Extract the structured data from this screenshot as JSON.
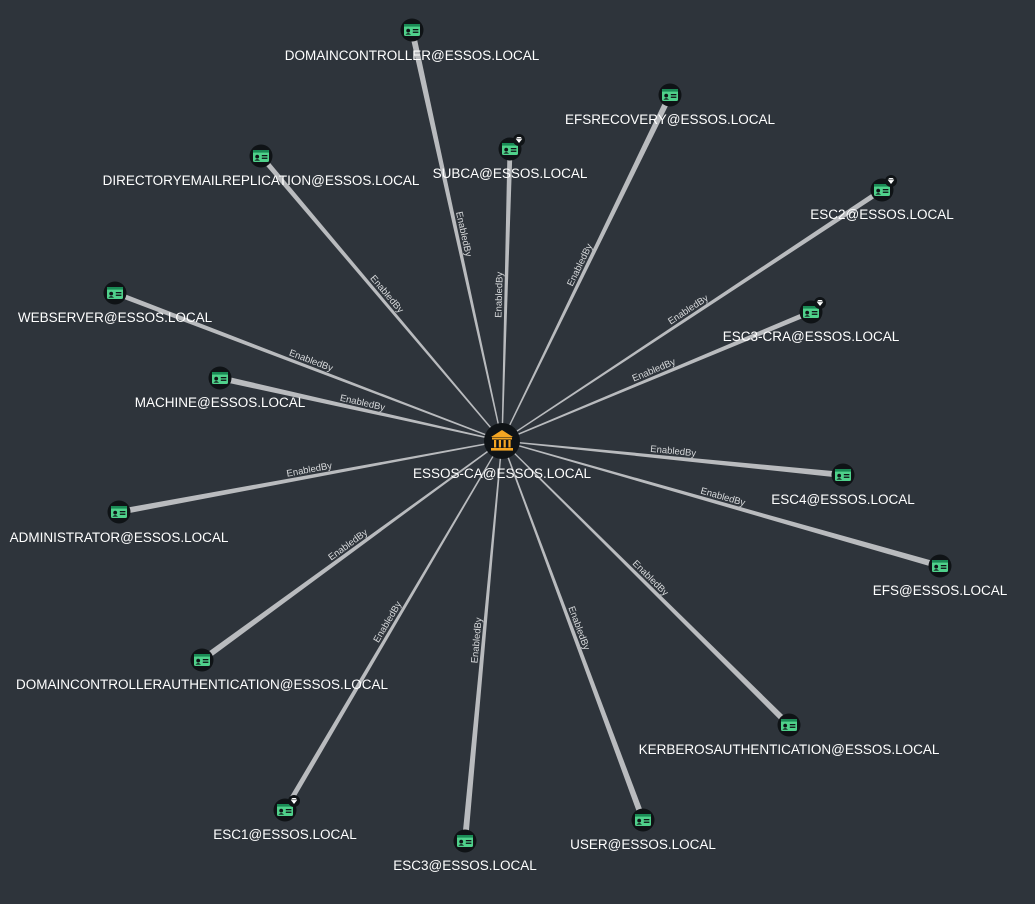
{
  "graph": {
    "background": "#2e343b",
    "edge_color": "#b9bbbe",
    "template_icon_color": "#4fd18b",
    "ca_icon_color": "#f5a623",
    "center": {
      "id": "essos-ca",
      "label": "ESSOS-CA@ESSOS.LOCAL",
      "icon": "bank-icon"
    },
    "nodes": [
      {
        "id": "domaincontroller",
        "label": "DOMAINCONTROLLER@ESSOS.LOCAL",
        "icon": "certificate-template-icon",
        "badge": false,
        "edge_label": "EnabledBy"
      },
      {
        "id": "efsrecovery",
        "label": "EFSRECOVERY@ESSOS.LOCAL",
        "icon": "certificate-template-icon",
        "badge": false,
        "edge_label": "EnabledBy"
      },
      {
        "id": "subca",
        "label": "SUBCA@ESSOS.LOCAL",
        "icon": "certificate-template-icon",
        "badge": true,
        "edge_label": "EnabledBy"
      },
      {
        "id": "directoryemailreplication",
        "label": "DIRECTORYEMAILREPLICATION@ESSOS.LOCAL",
        "icon": "certificate-template-icon",
        "badge": false,
        "edge_label": "EnabledBy"
      },
      {
        "id": "esc2",
        "label": "ESC2@ESSOS.LOCAL",
        "icon": "certificate-template-icon",
        "badge": true,
        "edge_label": "EnabledBy"
      },
      {
        "id": "esc3-cra",
        "label": "ESC3-CRA@ESSOS.LOCAL",
        "icon": "certificate-template-icon",
        "badge": true,
        "edge_label": "EnabledBy"
      },
      {
        "id": "webserver",
        "label": "WEBSERVER@ESSOS.LOCAL",
        "icon": "certificate-template-icon",
        "badge": false,
        "edge_label": "EnabledBy"
      },
      {
        "id": "machine",
        "label": "MACHINE@ESSOS.LOCAL",
        "icon": "certificate-template-icon",
        "badge": false,
        "edge_label": "EnabledBy"
      },
      {
        "id": "esc4",
        "label": "ESC4@ESSOS.LOCAL",
        "icon": "certificate-template-icon",
        "badge": false,
        "edge_label": "EnabledBy"
      },
      {
        "id": "administrator",
        "label": "ADMINISTRATOR@ESSOS.LOCAL",
        "icon": "certificate-template-icon",
        "badge": false,
        "edge_label": "EnabledBy"
      },
      {
        "id": "efs",
        "label": "EFS@ESSOS.LOCAL",
        "icon": "certificate-template-icon",
        "badge": false,
        "edge_label": "EnabledBy"
      },
      {
        "id": "domaincontrollerauthentication",
        "label": "DOMAINCONTROLLERAUTHENTICATION@ESSOS.LOCAL",
        "icon": "certificate-template-icon",
        "badge": false,
        "edge_label": "EnabledBy"
      },
      {
        "id": "kerberosauthentication",
        "label": "KERBEROSAUTHENTICATION@ESSOS.LOCAL",
        "icon": "certificate-template-icon",
        "badge": false,
        "edge_label": "EnabledBy"
      },
      {
        "id": "esc1",
        "label": "ESC1@ESSOS.LOCAL",
        "icon": "certificate-template-icon",
        "badge": true,
        "edge_label": "EnabledBy"
      },
      {
        "id": "esc3",
        "label": "ESC3@ESSOS.LOCAL",
        "icon": "certificate-template-icon",
        "badge": false,
        "edge_label": "EnabledBy"
      },
      {
        "id": "user",
        "label": "USER@ESSOS.LOCAL",
        "icon": "certificate-template-icon",
        "badge": false,
        "edge_label": "EnabledBy"
      }
    ]
  }
}
